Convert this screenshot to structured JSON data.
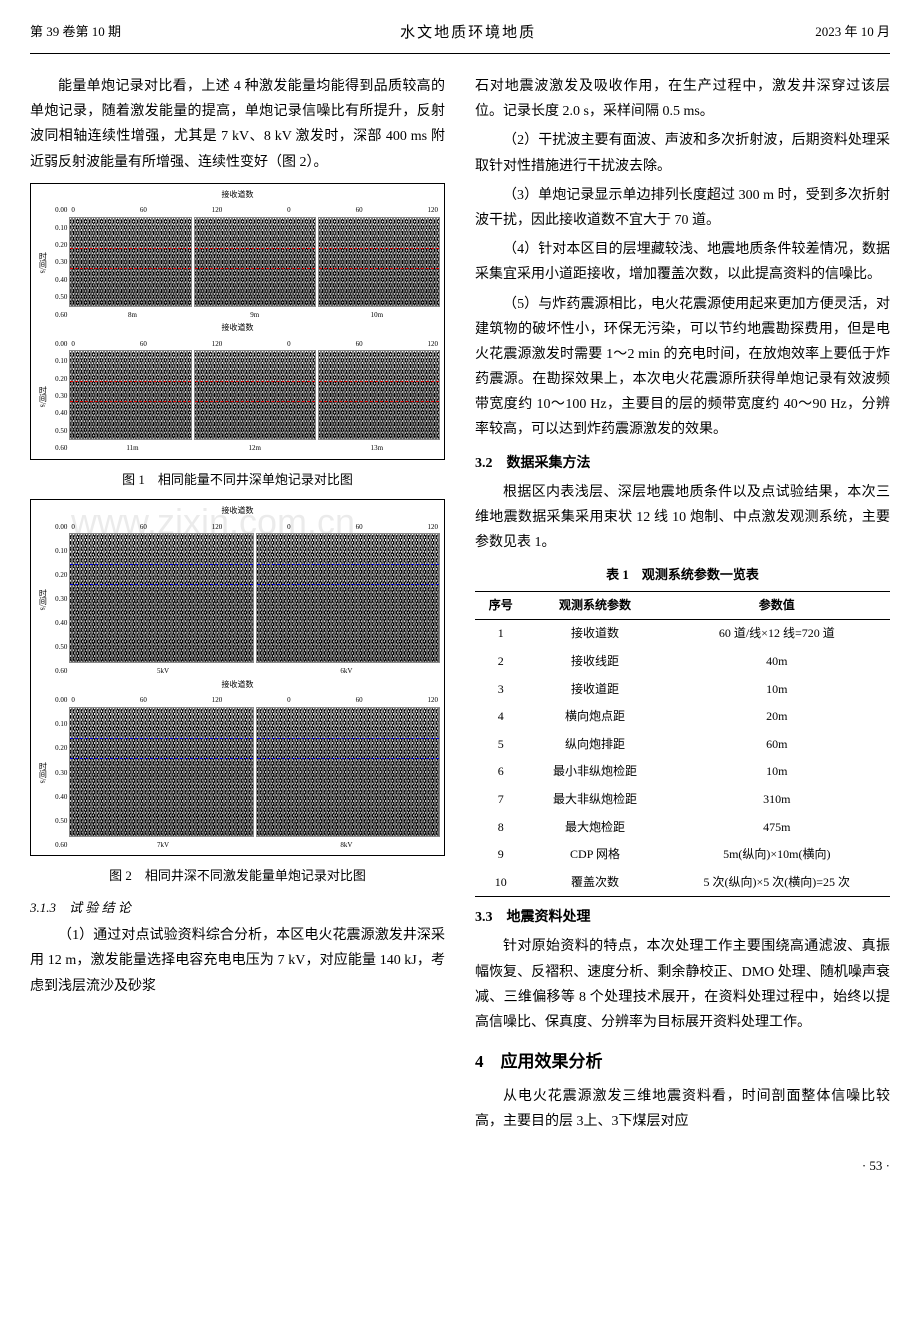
{
  "header": {
    "left": "第 39 卷第 10 期",
    "center": "水文地质环境地质",
    "right": "2023 年 10 月"
  },
  "col1": {
    "p1": "能量单炮记录对比看，上述 4 种激发能量均能得到品质较高的单炮记录，随着激发能量的提高，单炮记录信噪比有所提升，反射波同相轴连续性增强，尤其是 7 kV、8 kV 激发时，深部 400 ms 附近弱反射波能量有所增强、连续性变好（图 2）。",
    "fig1": {
      "header": "接收道数",
      "x_ticks": [
        "0",
        "60",
        "120",
        "0",
        "60",
        "120"
      ],
      "y_ticks": [
        "0.00",
        "0.10",
        "0.20",
        "0.30",
        "0.40",
        "0.50",
        "0.60"
      ],
      "y_label": "时间/s",
      "row_labels": [
        [
          "8m",
          "9m",
          "10m"
        ],
        [
          "11m",
          "12m",
          "13m"
        ]
      ],
      "caption": "图 1　相同能量不同井深单炮记录对比图",
      "line_color": "#d00000"
    },
    "fig2": {
      "header": "接收道数",
      "x_ticks": [
        "0",
        "60",
        "120",
        "0",
        "60",
        "120"
      ],
      "y_ticks": [
        "0.00",
        "0.10",
        "0.20",
        "0.30",
        "0.40",
        "0.50",
        "0.60"
      ],
      "y_label": "时间/s",
      "top_labels": [
        "5kV",
        "6kV"
      ],
      "bottom_labels": [
        "7kV",
        "8kV"
      ],
      "caption": "图 2　相同井深不同激发能量单炮记录对比图",
      "line_color": "#0000d0"
    },
    "sec313": "3.1.3　试 验 结 论",
    "p2": "（1）通过对点试验资料综合分析，本区电火花震源激发井深采用 12 m，激发能量选择电容充电电压为 7 kV，对应能量 140 kJ，考虑到浅层流沙及砂浆"
  },
  "col2": {
    "p1": "石对地震波激发及吸收作用，在生产过程中，激发井深穿过该层位。记录长度 2.0 s，采样间隔 0.5 ms。",
    "p2": "（2）干扰波主要有面波、声波和多次折射波，后期资料处理采取针对性措施进行干扰波去除。",
    "p3": "（3）单炮记录显示单边排列长度超过 300 m 时，受到多次折射波干扰，因此接收道数不宜大于 70 道。",
    "p4": "（4）针对本区目的层埋藏较浅、地震地质条件较差情况，数据采集宜采用小道距接收，增加覆盖次数，以此提高资料的信噪比。",
    "p5": "（5）与炸药震源相比，电火花震源使用起来更加方便灵活，对建筑物的破坏性小，环保无污染，可以节约地震勘探费用，但是电火花震源激发时需要 1～2 min 的充电时间，在放炮效率上要低于炸药震源。在勘探效果上，本次电火花震源所获得单炮记录有效波频带宽度约 10～100 Hz，主要目的层的频带宽度约 40～90 Hz，分辨率较高，可以达到炸药震源激发的效果。",
    "sec32": "3.2　数据采集方法",
    "p6": "根据区内表浅层、深层地震地质条件以及点试验结果，本次三维地震数据采集采用束状 12 线 10 炮制、中点激发观测系统，主要参数见表 1。",
    "table1": {
      "caption": "表 1　观测系统参数一览表",
      "columns": [
        "序号",
        "观测系统参数",
        "参数值"
      ],
      "rows": [
        [
          "1",
          "接收道数",
          "60 道/线×12 线=720 道"
        ],
        [
          "2",
          "接收线距",
          "40m"
        ],
        [
          "3",
          "接收道距",
          "10m"
        ],
        [
          "4",
          "横向炮点距",
          "20m"
        ],
        [
          "5",
          "纵向炮排距",
          "60m"
        ],
        [
          "6",
          "最小非纵炮检距",
          "10m"
        ],
        [
          "7",
          "最大非纵炮检距",
          "310m"
        ],
        [
          "8",
          "最大炮检距",
          "475m"
        ],
        [
          "9",
          "CDP 网格",
          "5m(纵向)×10m(横向)"
        ],
        [
          "10",
          "覆盖次数",
          "5 次(纵向)×5 次(横向)=25 次"
        ]
      ]
    },
    "sec33": "3.3　地震资料处理",
    "p7": "针对原始资料的特点，本次处理工作主要围绕高通滤波、真振幅恢复、反褶积、速度分析、剩余静校正、DMO 处理、随机噪声衰减、三维偏移等 8 个处理技术展开，在资料处理过程中，始终以提高信噪比、保真度、分辨率为目标展开资料处理工作。",
    "sec4": "4　应用效果分析",
    "p8": "从电火花震源激发三维地震资料看，时间剖面整体信噪比较高，主要目的层 3上、3下煤层对应"
  },
  "page": "· 53 ·",
  "watermark": "www.zixin.com.cn"
}
